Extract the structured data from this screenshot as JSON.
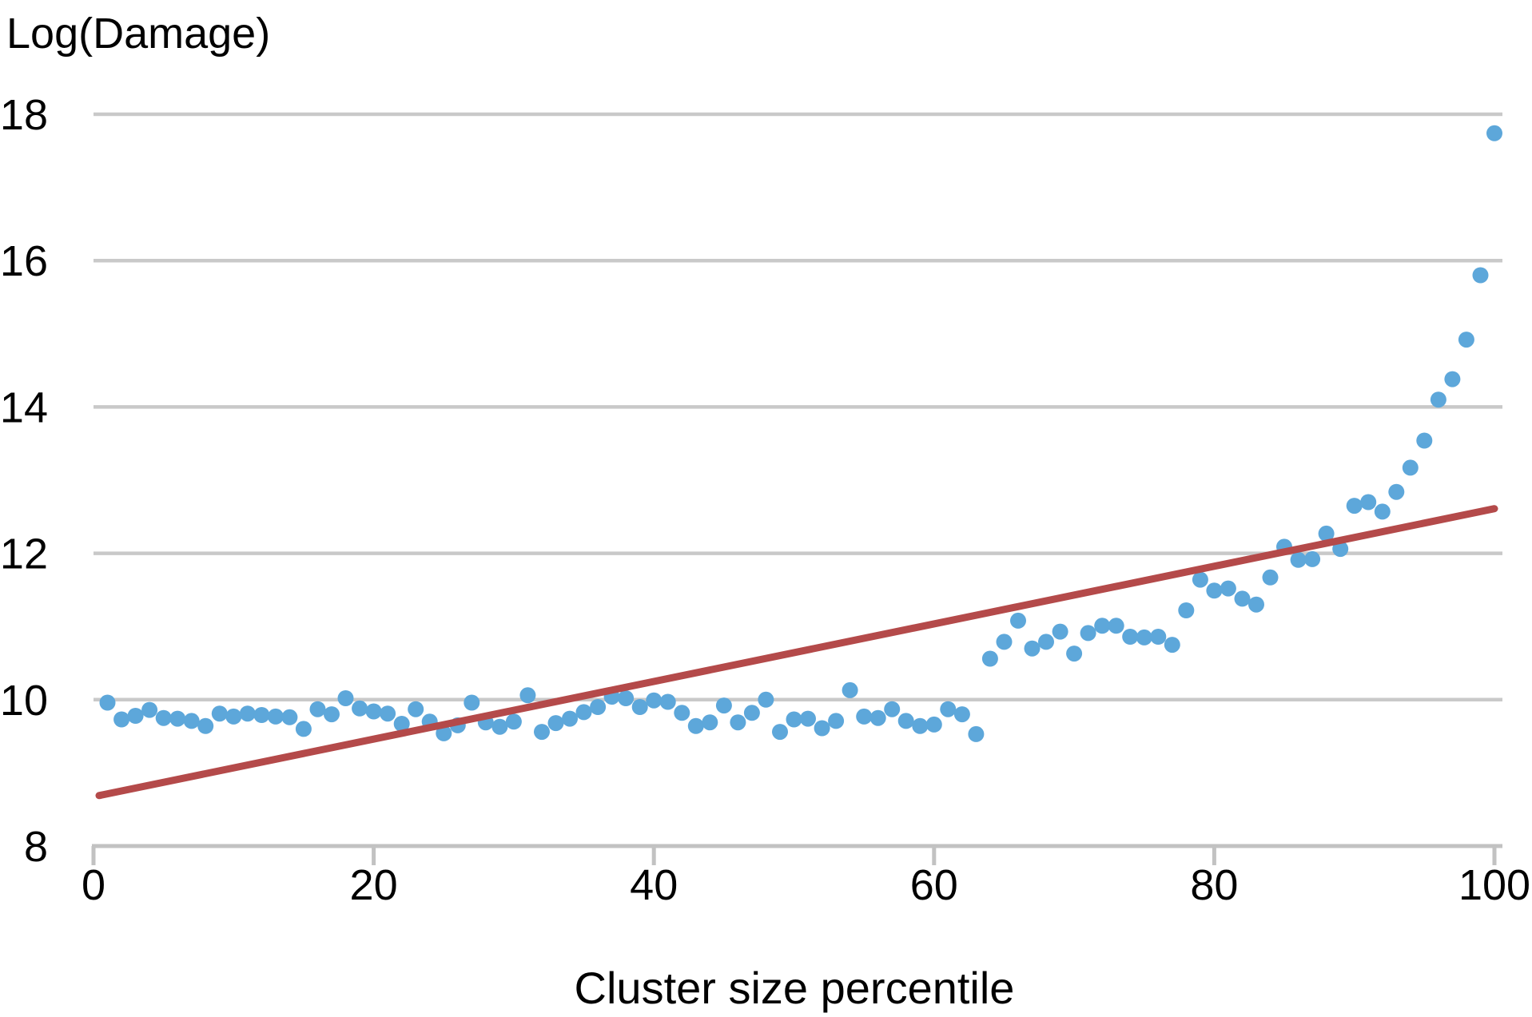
{
  "colors": {
    "background": "#ffffff",
    "gridline": "#c9c9c9",
    "axis": "#c2c2c2",
    "text": "#000000",
    "point": "#5da7da",
    "trend": "#b44a4a"
  },
  "chart_data": {
    "type": "scatter",
    "title": "Log(Damage)",
    "xlabel": "Cluster size percentile",
    "ylabel": "Log(Damage)",
    "xlim": [
      0,
      100
    ],
    "ylim": [
      8,
      18.3
    ],
    "x_ticks": [
      0,
      20,
      40,
      60,
      80,
      100
    ],
    "y_ticks": [
      8,
      10,
      12,
      14,
      16,
      18
    ],
    "grid": "horizontal-only",
    "legend": "none",
    "series": [
      {
        "name": "cluster-damage-points",
        "type": "scatter",
        "color": "#5da7da",
        "x": [
          1,
          2,
          3,
          4,
          5,
          6,
          7,
          8,
          9,
          10,
          11,
          12,
          13,
          14,
          15,
          16,
          17,
          18,
          19,
          20,
          21,
          22,
          23,
          24,
          25,
          26,
          27,
          28,
          29,
          30,
          31,
          32,
          33,
          34,
          35,
          36,
          37,
          38,
          39,
          40,
          41,
          42,
          43,
          44,
          45,
          46,
          47,
          48,
          49,
          50,
          51,
          52,
          53,
          54,
          55,
          56,
          57,
          58,
          59,
          60,
          61,
          62,
          63,
          64,
          65,
          66,
          67,
          68,
          69,
          70,
          71,
          72,
          73,
          74,
          75,
          76,
          77,
          78,
          79,
          80,
          81,
          82,
          83,
          84,
          85,
          86,
          87,
          88,
          89,
          90,
          91,
          92,
          93,
          94,
          95,
          96,
          97,
          98,
          99,
          100
        ],
        "y": [
          9.96,
          9.73,
          9.78,
          9.86,
          9.75,
          9.74,
          9.71,
          9.64,
          9.81,
          9.77,
          9.81,
          9.79,
          9.77,
          9.76,
          9.6,
          9.87,
          9.8,
          10.02,
          9.88,
          9.84,
          9.81,
          9.67,
          9.87,
          9.7,
          9.54,
          9.65,
          9.96,
          9.69,
          9.63,
          9.7,
          10.06,
          9.56,
          9.68,
          9.74,
          9.83,
          9.9,
          10.04,
          10.02,
          9.9,
          9.99,
          9.97,
          9.82,
          9.64,
          9.69,
          9.92,
          9.69,
          9.82,
          10.0,
          9.56,
          9.73,
          9.74,
          9.61,
          9.71,
          10.13,
          9.77,
          9.75,
          9.87,
          9.71,
          9.64,
          9.66,
          9.87,
          9.8,
          9.53,
          10.56,
          10.79,
          11.08,
          10.7,
          10.79,
          10.93,
          10.63,
          10.91,
          11.01,
          11.01,
          10.86,
          10.85,
          10.86,
          10.75,
          11.22,
          11.64,
          11.49,
          11.52,
          11.38,
          11.3,
          11.67,
          12.09,
          11.91,
          11.92,
          12.27,
          12.06,
          12.65,
          12.7,
          12.57,
          12.84,
          13.17,
          13.54,
          14.1,
          14.38,
          14.92,
          15.8,
          17.74
        ]
      },
      {
        "name": "trend-line",
        "type": "line",
        "color": "#b44a4a",
        "x": [
          0.4,
          100
        ],
        "y": [
          8.69,
          12.61
        ]
      }
    ]
  }
}
